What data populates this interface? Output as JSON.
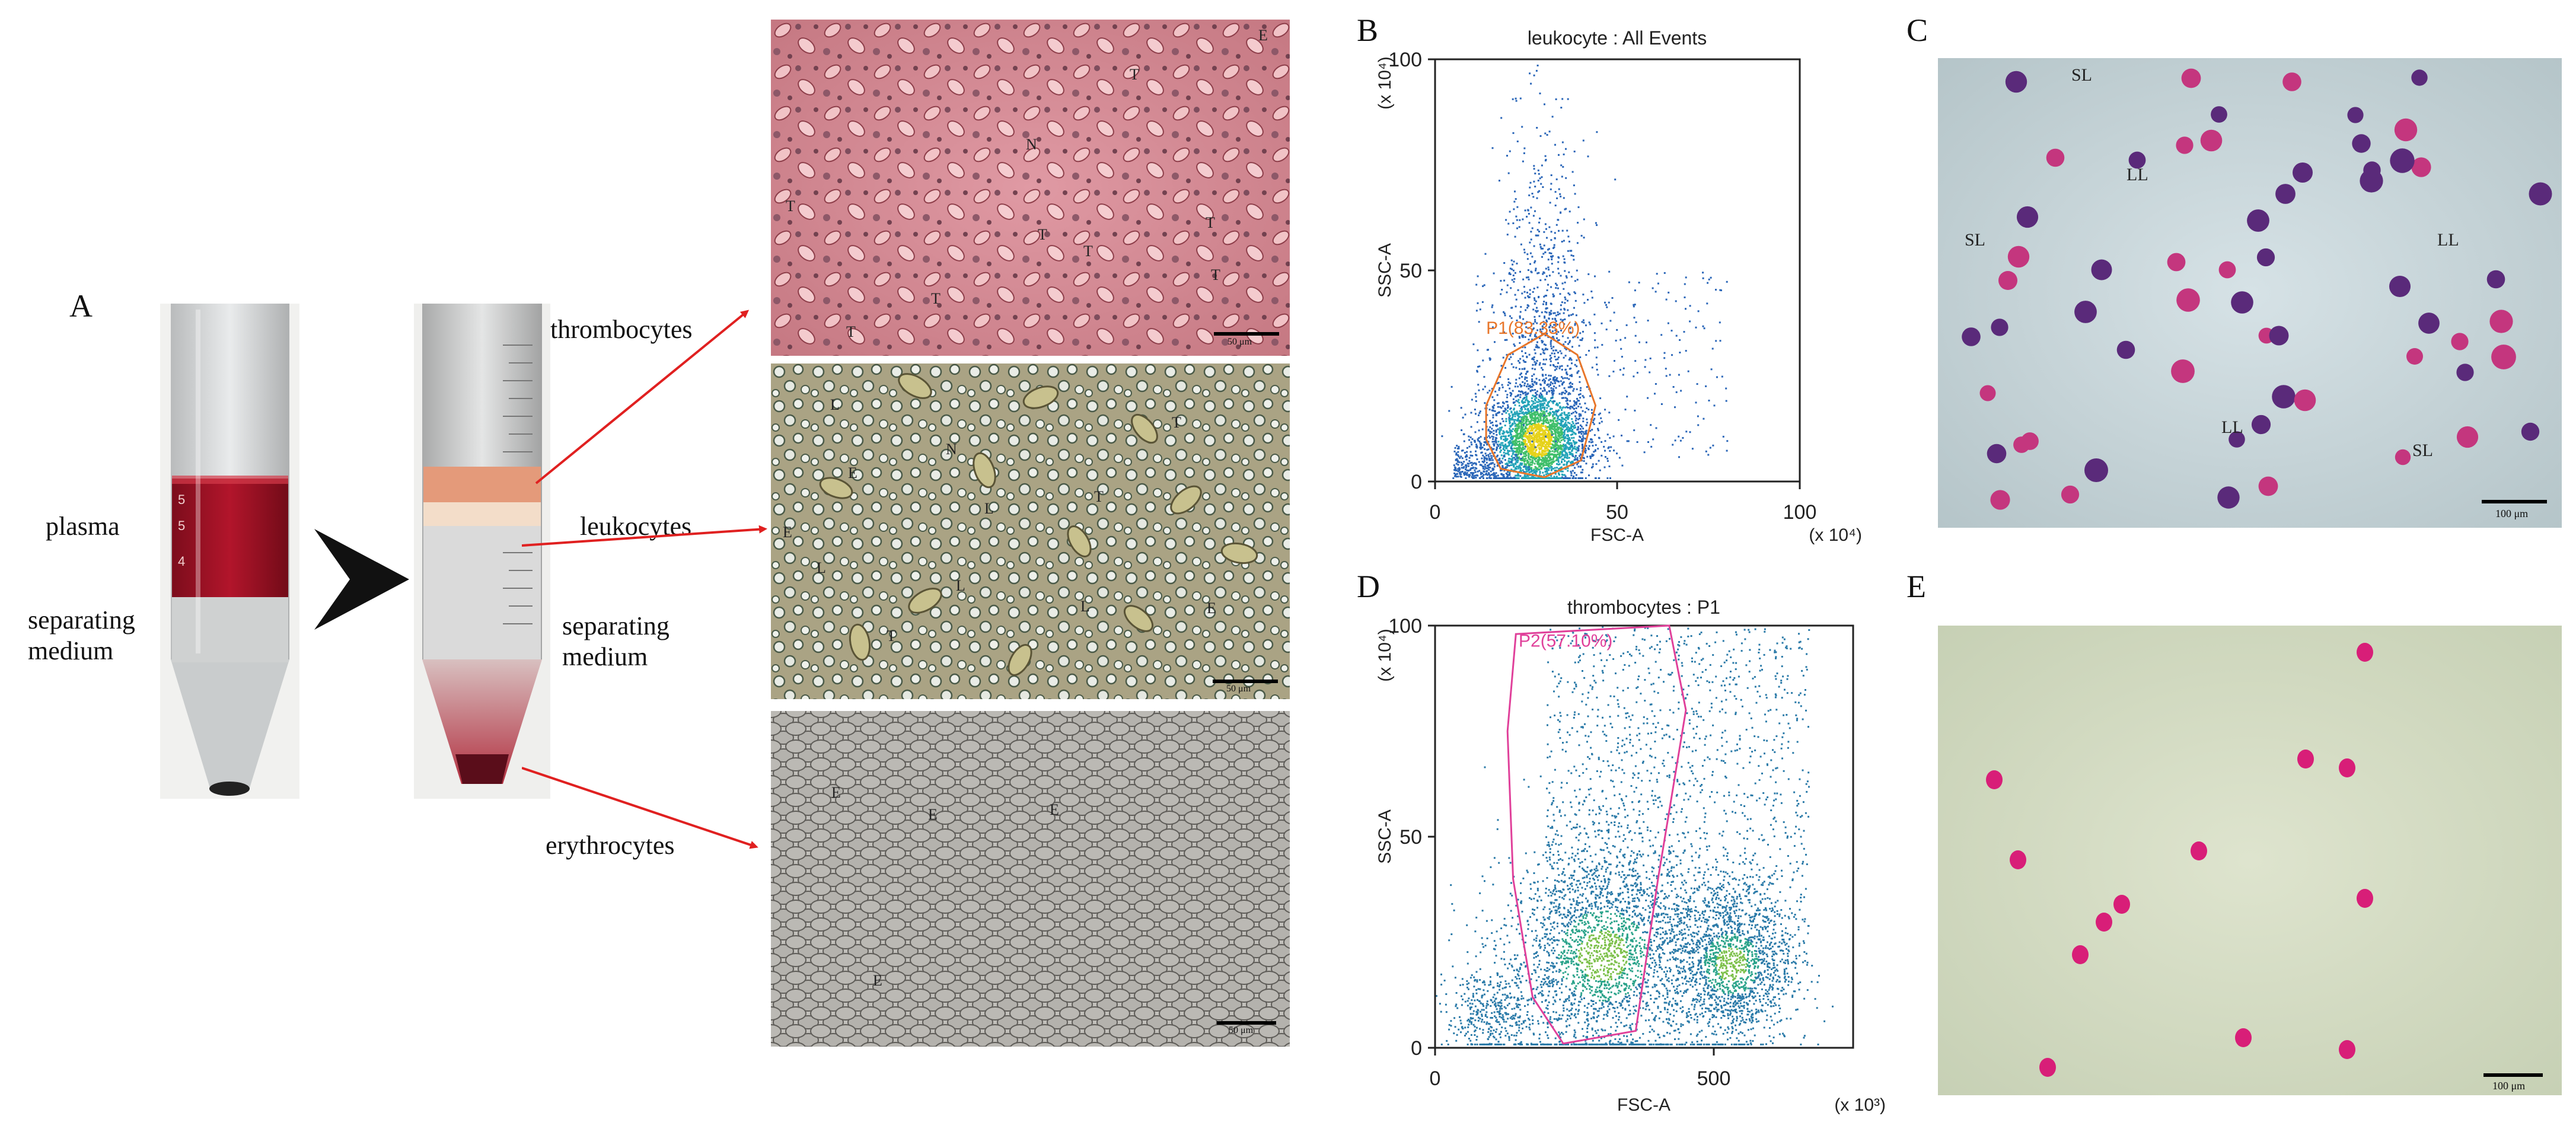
{
  "panels": {
    "A": {
      "letter": "A",
      "labels": {
        "plasma": "plasma",
        "sep1": "separating medium",
        "thrombocytes": "thrombocytes",
        "leukocytes": "leukocytes",
        "sep2": "separating medium",
        "erythrocytes": "erythrocytes"
      },
      "tube_marks": [
        "5",
        "5",
        "4"
      ]
    },
    "micro_top": {
      "labels": [
        "E",
        "T",
        "N",
        "T",
        "T",
        "T",
        "T",
        "T",
        "T",
        "T"
      ],
      "scale": "50 μm"
    },
    "micro_mid": {
      "labels": [
        "L",
        "E",
        "N",
        "L",
        "T",
        "E",
        "L",
        "L",
        "L",
        "E",
        "T",
        "T"
      ],
      "scale": "50 μm"
    },
    "micro_bot": {
      "labels": [
        "E",
        "E",
        "E",
        "E"
      ],
      "scale": "50 μm"
    },
    "B": {
      "letter": "B"
    },
    "C": {
      "letter": "C",
      "labels": [
        "SL",
        "LL",
        "SL",
        "LL",
        "LL",
        "SL"
      ],
      "scale": "100 μm"
    },
    "D": {
      "letter": "D"
    },
    "E": {
      "letter": "E",
      "scale": "100 μm"
    }
  },
  "chart_data": [
    {
      "type": "scatter",
      "title": "leukocyte : All Events",
      "xlabel": "FSC-A",
      "ylabel": "SSC-A",
      "x_unit": "(x 10⁴)",
      "y_unit": "(x 10⁴)",
      "xlim": [
        0,
        100
      ],
      "ylim": [
        0,
        100
      ],
      "xticks": [
        "0",
        "50",
        "100"
      ],
      "yticks": [
        "0",
        "50",
        "100"
      ],
      "gate": {
        "name": "P1",
        "label": "P1(83.33%)",
        "percent": 83.33,
        "color": "#e8762a"
      },
      "cluster": {
        "center": [
          28,
          10
        ]
      },
      "color": "#2a66b8"
    },
    {
      "type": "scatter",
      "title": "thrombocytes : P1",
      "xlabel": "FSC-A",
      "ylabel": "SSC-A",
      "x_unit": "(x 10³)",
      "y_unit": "(x 10⁴)",
      "xlim": [
        0,
        750
      ],
      "ylim": [
        0,
        100
      ],
      "xticks": [
        "0",
        "500"
      ],
      "yticks": [
        "0",
        "50",
        "100"
      ],
      "gate": {
        "name": "P2",
        "label": "P2(57.10%)",
        "percent": 57.1,
        "color": "#e0409a"
      },
      "color": "#2a7aa8"
    }
  ]
}
